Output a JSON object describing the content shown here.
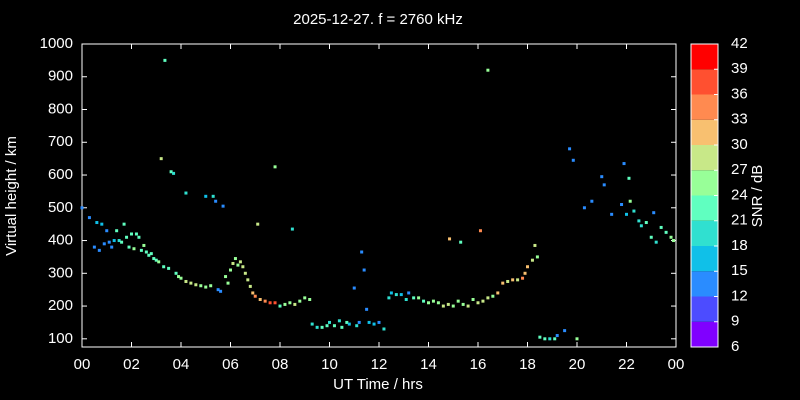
{
  "chart_data": {
    "type": "scatter",
    "title": "2025-12-27. f = 2760 kHz",
    "xlabel": "UT Time / hrs",
    "ylabel": "Virtual height / km",
    "colorbar_label": "SNR / dB",
    "xlim": [
      0,
      24
    ],
    "ylim": [
      75,
      1000
    ],
    "xticks": [
      {
        "value": 0,
        "label": "00"
      },
      {
        "value": 2,
        "label": "02"
      },
      {
        "value": 4,
        "label": "04"
      },
      {
        "value": 6,
        "label": "06"
      },
      {
        "value": 8,
        "label": "08"
      },
      10,
      12,
      14,
      16,
      18,
      20,
      22,
      {
        "value": 24,
        "label": "00"
      }
    ],
    "yticks": [
      100,
      200,
      300,
      400,
      500,
      600,
      700,
      800,
      900,
      1000
    ],
    "clim": [
      6,
      42
    ],
    "cticks": [
      6,
      9,
      12,
      15,
      18,
      21,
      24,
      27,
      30,
      33,
      36,
      39,
      42
    ],
    "colormap": [
      "#8000ff",
      "#4c4cff",
      "#2a8cff",
      "#10c0e8",
      "#30e0d0",
      "#60ffc0",
      "#98ff98",
      "#c8e888",
      "#f8c070",
      "#ff8a50",
      "#ff5030",
      "#ff0000"
    ],
    "x": [
      0.0,
      0.3,
      0.5,
      0.6,
      0.7,
      0.8,
      0.9,
      1.0,
      1.1,
      1.2,
      1.3,
      1.4,
      1.5,
      1.6,
      1.7,
      1.8,
      1.9,
      2.0,
      2.1,
      2.2,
      2.3,
      2.4,
      2.5,
      2.6,
      2.7,
      2.8,
      2.9,
      3.0,
      3.1,
      3.2,
      3.3,
      3.35,
      3.5,
      3.6,
      3.7,
      3.8,
      3.9,
      4.0,
      4.2,
      4.2,
      4.4,
      4.6,
      4.8,
      5.0,
      5.0,
      5.2,
      5.3,
      5.4,
      5.5,
      5.6,
      5.7,
      5.8,
      5.9,
      6.0,
      6.1,
      6.2,
      6.3,
      6.4,
      6.5,
      6.6,
      6.7,
      6.8,
      6.9,
      7.0,
      7.1,
      7.2,
      7.4,
      7.6,
      7.8,
      7.8,
      8.0,
      8.2,
      8.4,
      8.5,
      8.6,
      8.8,
      9.0,
      9.2,
      9.3,
      9.5,
      9.7,
      9.9,
      10.0,
      10.2,
      10.4,
      10.5,
      10.7,
      10.8,
      11.0,
      11.1,
      11.2,
      11.3,
      11.4,
      11.5,
      11.6,
      11.8,
      12.0,
      12.2,
      12.4,
      12.5,
      12.7,
      12.9,
      13.1,
      13.2,
      13.4,
      13.6,
      13.8,
      14.0,
      14.2,
      14.4,
      14.6,
      14.8,
      14.85,
      15.0,
      15.2,
      15.3,
      15.4,
      15.6,
      15.8,
      16.0,
      16.1,
      16.2,
      16.4,
      16.4,
      16.6,
      16.8,
      17.0,
      17.2,
      17.4,
      17.6,
      17.8,
      17.9,
      18.0,
      18.2,
      18.3,
      18.4,
      18.5,
      18.7,
      18.9,
      19.1,
      19.2,
      19.5,
      19.7,
      19.85,
      20.0,
      20.3,
      20.6,
      21.0,
      21.1,
      21.4,
      21.8,
      21.9,
      22.0,
      22.1,
      22.15,
      22.3,
      22.5,
      22.6,
      22.8,
      23.0,
      23.2,
      23.1,
      23.4,
      23.6,
      23.8,
      23.9
    ],
    "values": [
      500,
      470,
      380,
      455,
      370,
      450,
      390,
      430,
      395,
      380,
      400,
      430,
      400,
      395,
      450,
      410,
      380,
      420,
      375,
      420,
      410,
      370,
      385,
      365,
      355,
      360,
      345,
      340,
      335,
      650,
      320,
      950,
      315,
      610,
      605,
      300,
      290,
      285,
      545,
      275,
      270,
      265,
      262,
      258,
      535,
      262,
      535,
      520,
      250,
      245,
      505,
      290,
      270,
      310,
      330,
      345,
      325,
      335,
      320,
      300,
      280,
      260,
      240,
      230,
      450,
      220,
      215,
      210,
      210,
      625,
      200,
      205,
      210,
      435,
      205,
      215,
      225,
      220,
      145,
      135,
      135,
      140,
      150,
      140,
      155,
      135,
      150,
      145,
      255,
      140,
      150,
      365,
      310,
      190,
      150,
      145,
      150,
      130,
      225,
      240,
      235,
      235,
      220,
      240,
      225,
      225,
      215,
      210,
      215,
      210,
      200,
      205,
      405,
      200,
      215,
      395,
      205,
      200,
      220,
      210,
      430,
      215,
      920,
      225,
      230,
      240,
      270,
      275,
      280,
      280,
      285,
      300,
      320,
      340,
      385,
      350,
      105,
      100,
      100,
      100,
      110,
      125,
      680,
      645,
      100,
      500,
      520,
      595,
      570,
      480,
      510,
      635,
      480,
      590,
      520,
      490,
      460,
      445,
      455,
      410,
      395,
      485,
      440,
      425,
      410,
      400
    ],
    "snr": [
      12,
      12,
      12,
      15,
      12,
      15,
      12,
      12,
      12,
      12,
      15,
      21,
      18,
      21,
      21,
      21,
      21,
      21,
      24,
      21,
      21,
      21,
      24,
      21,
      21,
      21,
      21,
      21,
      24,
      27,
      21,
      21,
      21,
      21,
      18,
      21,
      24,
      24,
      18,
      27,
      27,
      27,
      24,
      24,
      15,
      24,
      18,
      12,
      12,
      12,
      12,
      24,
      24,
      24,
      27,
      24,
      24,
      27,
      27,
      27,
      27,
      27,
      30,
      33,
      27,
      30,
      33,
      36,
      36,
      24,
      21,
      24,
      24,
      18,
      27,
      24,
      24,
      24,
      18,
      18,
      21,
      21,
      18,
      21,
      18,
      21,
      21,
      15,
      12,
      18,
      12,
      12,
      12,
      12,
      15,
      15,
      12,
      18,
      18,
      15,
      18,
      15,
      18,
      12,
      21,
      24,
      21,
      24,
      24,
      24,
      27,
      27,
      30,
      24,
      24,
      21,
      24,
      27,
      24,
      27,
      33,
      27,
      24,
      27,
      24,
      30,
      30,
      27,
      30,
      27,
      33,
      30,
      30,
      27,
      27,
      24,
      21,
      21,
      18,
      21,
      12,
      12,
      12,
      12,
      24,
      12,
      12,
      12,
      12,
      12,
      12,
      12,
      15,
      21,
      24,
      18,
      18,
      18,
      21,
      21,
      18,
      12,
      21,
      21,
      24,
      24
    ]
  }
}
